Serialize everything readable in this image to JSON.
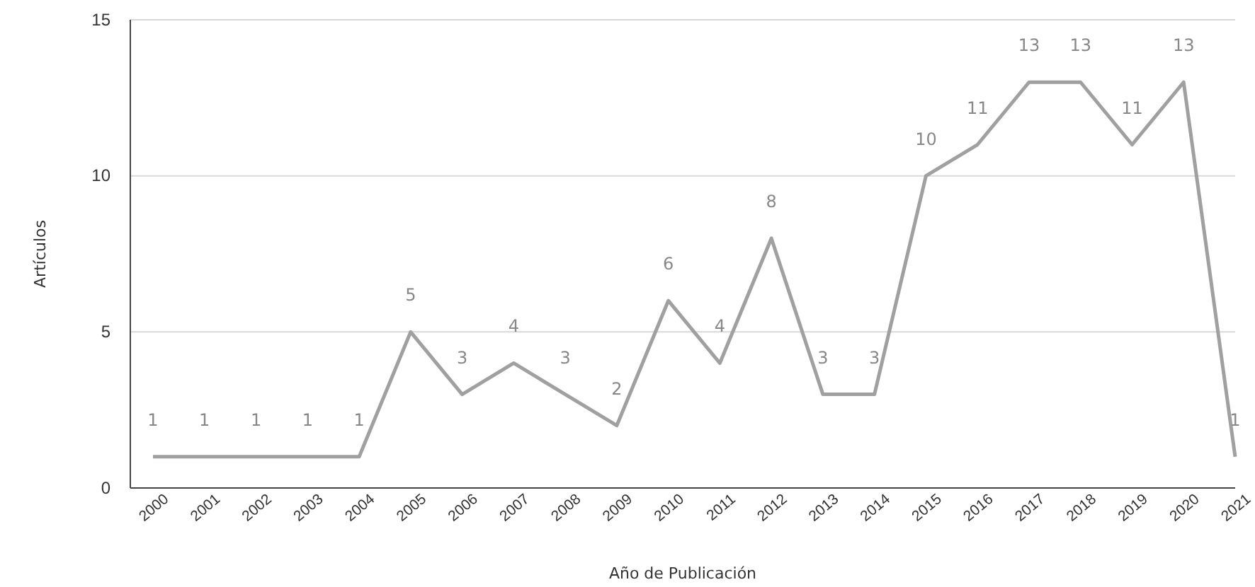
{
  "chart_data": {
    "type": "line",
    "xlabel": "Año de Publicación",
    "ylabel": "Artículos",
    "categories": [
      "2000",
      "2001",
      "2002",
      "2003",
      "2004",
      "2005",
      "2006",
      "2007",
      "2008",
      "2009",
      "2010",
      "2011",
      "2012",
      "2013",
      "2014",
      "2015",
      "2016",
      "2017",
      "2018",
      "2019",
      "2020",
      "2021"
    ],
    "series": [
      {
        "color": "#a0a0a0",
        "values": [
          1,
          1,
          1,
          1,
          1,
          5,
          3,
          4,
          3,
          2,
          6,
          4,
          8,
          3,
          3,
          10,
          11,
          13,
          13,
          11,
          13,
          1
        ]
      }
    ],
    "ylim": [
      0,
      15
    ],
    "yticks": [
      0,
      5,
      10,
      15
    ],
    "grid": "y",
    "data_labels": true,
    "marker": "none",
    "line_style": "solid"
  }
}
